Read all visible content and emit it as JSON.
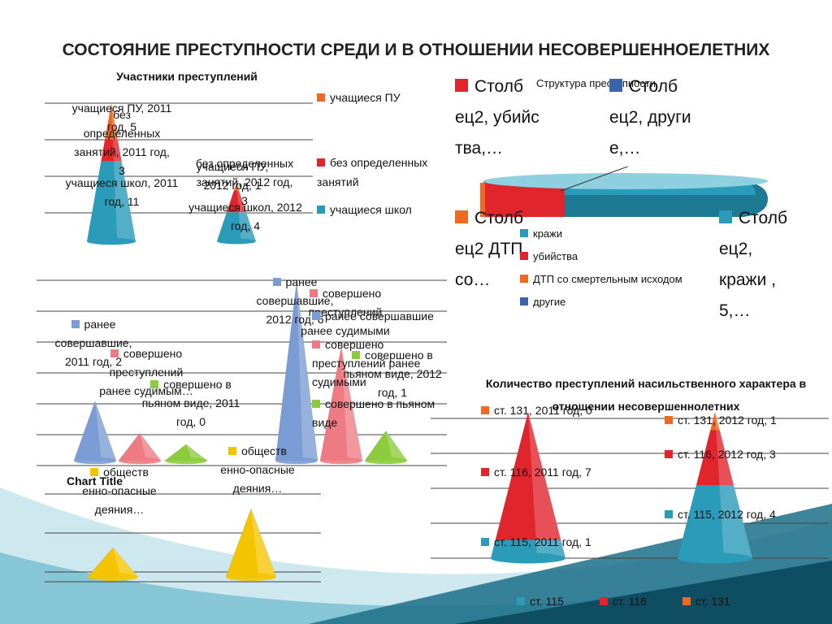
{
  "slide": {
    "title": "СОСТОЯНИЕ ПРЕСТУПНОСТИ СРЕДИ И В ОТНОШЕНИИ НЕСОВЕРШЕННОЕЛЕТНИХ",
    "chart_title_default": "Chart Title"
  },
  "participants": {
    "title": "Участники преступлений",
    "legend": [
      "учащиеся ПУ",
      "без определенных занятий",
      "учащиеся школ"
    ],
    "labels_2011": [
      "учащиеся ПУ, 2011 год, 5",
      "без определенных занятий, 2011 год, 3",
      "учащиеся школ, 2011 год, 11"
    ],
    "labels_2012": [
      "учащиеся ПУ, 2012 год, 1",
      "без определенных занятий, 2012 год, 3",
      "учащиеся школ, 2012 год, 4"
    ]
  },
  "structure": {
    "title": "Структура преступности",
    "big_labels": [
      "Столб ец2, убийс тва,…",
      "Столб ец2, други е,…",
      "Столб ец2 ДТП со…",
      "Столб ец2, кражи , 5,…"
    ],
    "legend": [
      "кражи",
      "убийства",
      "ДТП со смертельным исходом",
      "другие"
    ]
  },
  "status": {
    "labels_2011": [
      "ранее совершавшие, 2011 год, 2",
      "совершено преступлений ранее судимым…",
      "совершено в пьяном виде, 2011 год, 0"
    ],
    "labels_2012": [
      "ранее совершавшие, 2012 год, 6",
      "совершено преступлений ранее судимыми",
      "совершено в пьяном виде, 2012 год, 1"
    ],
    "legend": [
      "ранее совершавшие",
      "совершено преступлений ранее судимыми",
      "совершено в пьяном виде"
    ]
  },
  "dangerous": {
    "labels": [
      "обществ енно-опасные деяния…",
      "обществ енно-опасные деяния…"
    ]
  },
  "violent": {
    "title": "Количество  преступлений насильственного характера в отношении несовершеннолетних",
    "labels_2011": [
      "ст. 131, 2011 год, 0",
      "ст. 116, 2011 год, 7",
      "ст. 115, 2011 год, 1"
    ],
    "labels_2012": [
      "ст. 131, 2012 год, 1",
      "ст. 116, 2012 год, 3",
      "ст. 115, 2012 год, 4"
    ],
    "legend": [
      "ст. 115",
      "ст. 116",
      "ст. 131"
    ]
  },
  "colors": {
    "teal": "#2a9bb8",
    "red": "#e0252c",
    "orange": "#ee6a22",
    "blue": "#7a9bd4",
    "pink": "#ee7b84",
    "green": "#8ccc3c",
    "yellow": "#f5c400",
    "navy": "#3a62ad"
  },
  "chart_data": [
    {
      "type": "bar",
      "title": "Участники преступлений",
      "categories": [
        "2011 год",
        "2012 год"
      ],
      "series": [
        {
          "name": "учащиеся ПУ",
          "values": [
            5,
            1
          ]
        },
        {
          "name": "без определенных занятий",
          "values": [
            3,
            3
          ]
        },
        {
          "name": "учащиеся школ",
          "values": [
            11,
            4
          ]
        }
      ]
    },
    {
      "type": "pie",
      "title": "Структура преступности",
      "categories": [
        "кражи",
        "убийства",
        "ДТП со смертельным исходом",
        "другие"
      ],
      "values": [
        5,
        null,
        null,
        null
      ]
    },
    {
      "type": "bar",
      "categories": [
        "2011 год",
        "2012 год"
      ],
      "series": [
        {
          "name": "ранее совершавшие",
          "values": [
            2,
            6
          ]
        },
        {
          "name": "совершено преступлений ранее судимыми",
          "values": [
            null,
            null
          ]
        },
        {
          "name": "совершено в пьяном виде",
          "values": [
            0,
            1
          ]
        }
      ]
    },
    {
      "type": "bar",
      "title": "Chart Title",
      "series": [
        {
          "name": "общественно-опасные деяния",
          "values": [
            null,
            null
          ]
        }
      ]
    },
    {
      "type": "bar",
      "title": "Количество  преступлений насильственного характера в отношении несовершеннолетних",
      "categories": [
        "2011 год",
        "2012 год"
      ],
      "series": [
        {
          "name": "ст. 115",
          "values": [
            1,
            4
          ]
        },
        {
          "name": "ст. 116",
          "values": [
            7,
            3
          ]
        },
        {
          "name": "ст. 131",
          "values": [
            0,
            1
          ]
        }
      ]
    }
  ]
}
